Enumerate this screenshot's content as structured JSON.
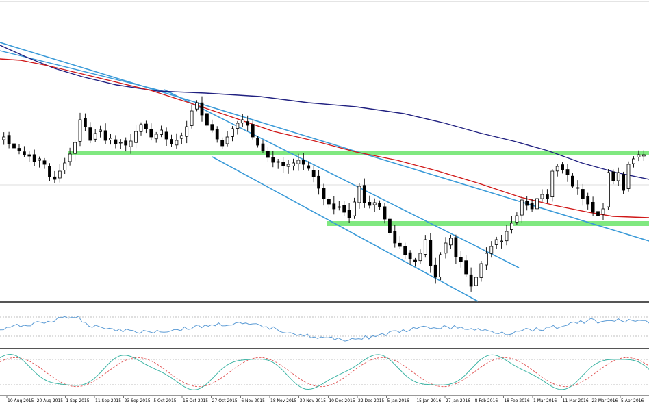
{
  "chart_data": {
    "type": "candlestick",
    "title": "",
    "panels": [
      "price",
      "rsi",
      "stochastic"
    ],
    "x_tick_labels": [
      "10 Aug 2015",
      "20 Aug 2015",
      "1 Sep 2015",
      "11 Sep 2015",
      "23 Sep 2015",
      "5 Oct 2015",
      "15 Oct 2015",
      "27 Oct 2015",
      "6 Nov 2015",
      "18 Nov 2015",
      "30 Nov 2015",
      "10 Dec 2015",
      "22 Dec 2015",
      "5 Jan 2016",
      "15 Jan 2016",
      "27 Jan 2016",
      "8 Feb 2016",
      "18 Feb 2016",
      "1 Mar 2016",
      "11 Mar 2016",
      "23 Mar 2016",
      "5 Apr 2016"
    ],
    "price_close_path": [
      200,
      210,
      216,
      220,
      226,
      228,
      236,
      232,
      240,
      258,
      262,
      250,
      238,
      225,
      208,
      175,
      185,
      205,
      195,
      190,
      205,
      202,
      210,
      208,
      212,
      206,
      192,
      182,
      188,
      200,
      196,
      190,
      203,
      210,
      205,
      198,
      185,
      162,
      150,
      168,
      183,
      190,
      203,
      213,
      200,
      188,
      180,
      175,
      183,
      200,
      212,
      220,
      230,
      237,
      236,
      242,
      240,
      238,
      234,
      240,
      246,
      258,
      275,
      290,
      298,
      305,
      302,
      310,
      318,
      295,
      272,
      296,
      300,
      296,
      302,
      320,
      340,
      355,
      360,
      372,
      378,
      382,
      370,
      350,
      388,
      405,
      372,
      355,
      348,
      375,
      382,
      400,
      418,
      405,
      385,
      370,
      360,
      350,
      352,
      338,
      326,
      315,
      292,
      300,
      305,
      290,
      284,
      290,
      250,
      243,
      248,
      255,
      272,
      275,
      290,
      298,
      310,
      315,
      305,
      252,
      264,
      252,
      278,
      240,
      232,
      226,
      226
    ],
    "series": [
      {
        "type": "ma",
        "color": "#d01818"
      },
      {
        "type": "ma",
        "color": "#202080"
      },
      {
        "type": "trendline",
        "color": "#3a9ad8"
      },
      {
        "type": "horizontal_zone",
        "color": "#80e880"
      }
    ],
    "indicators": [
      {
        "panel": "rsi",
        "line_color": "#5b9bd5",
        "level_lines": "dotted"
      },
      {
        "panel": "stochastic",
        "main_color": "#3cb4a4",
        "signal_color": "#e05050",
        "signal_style": "dashed"
      }
    ],
    "grid": false,
    "legend": "none"
  }
}
